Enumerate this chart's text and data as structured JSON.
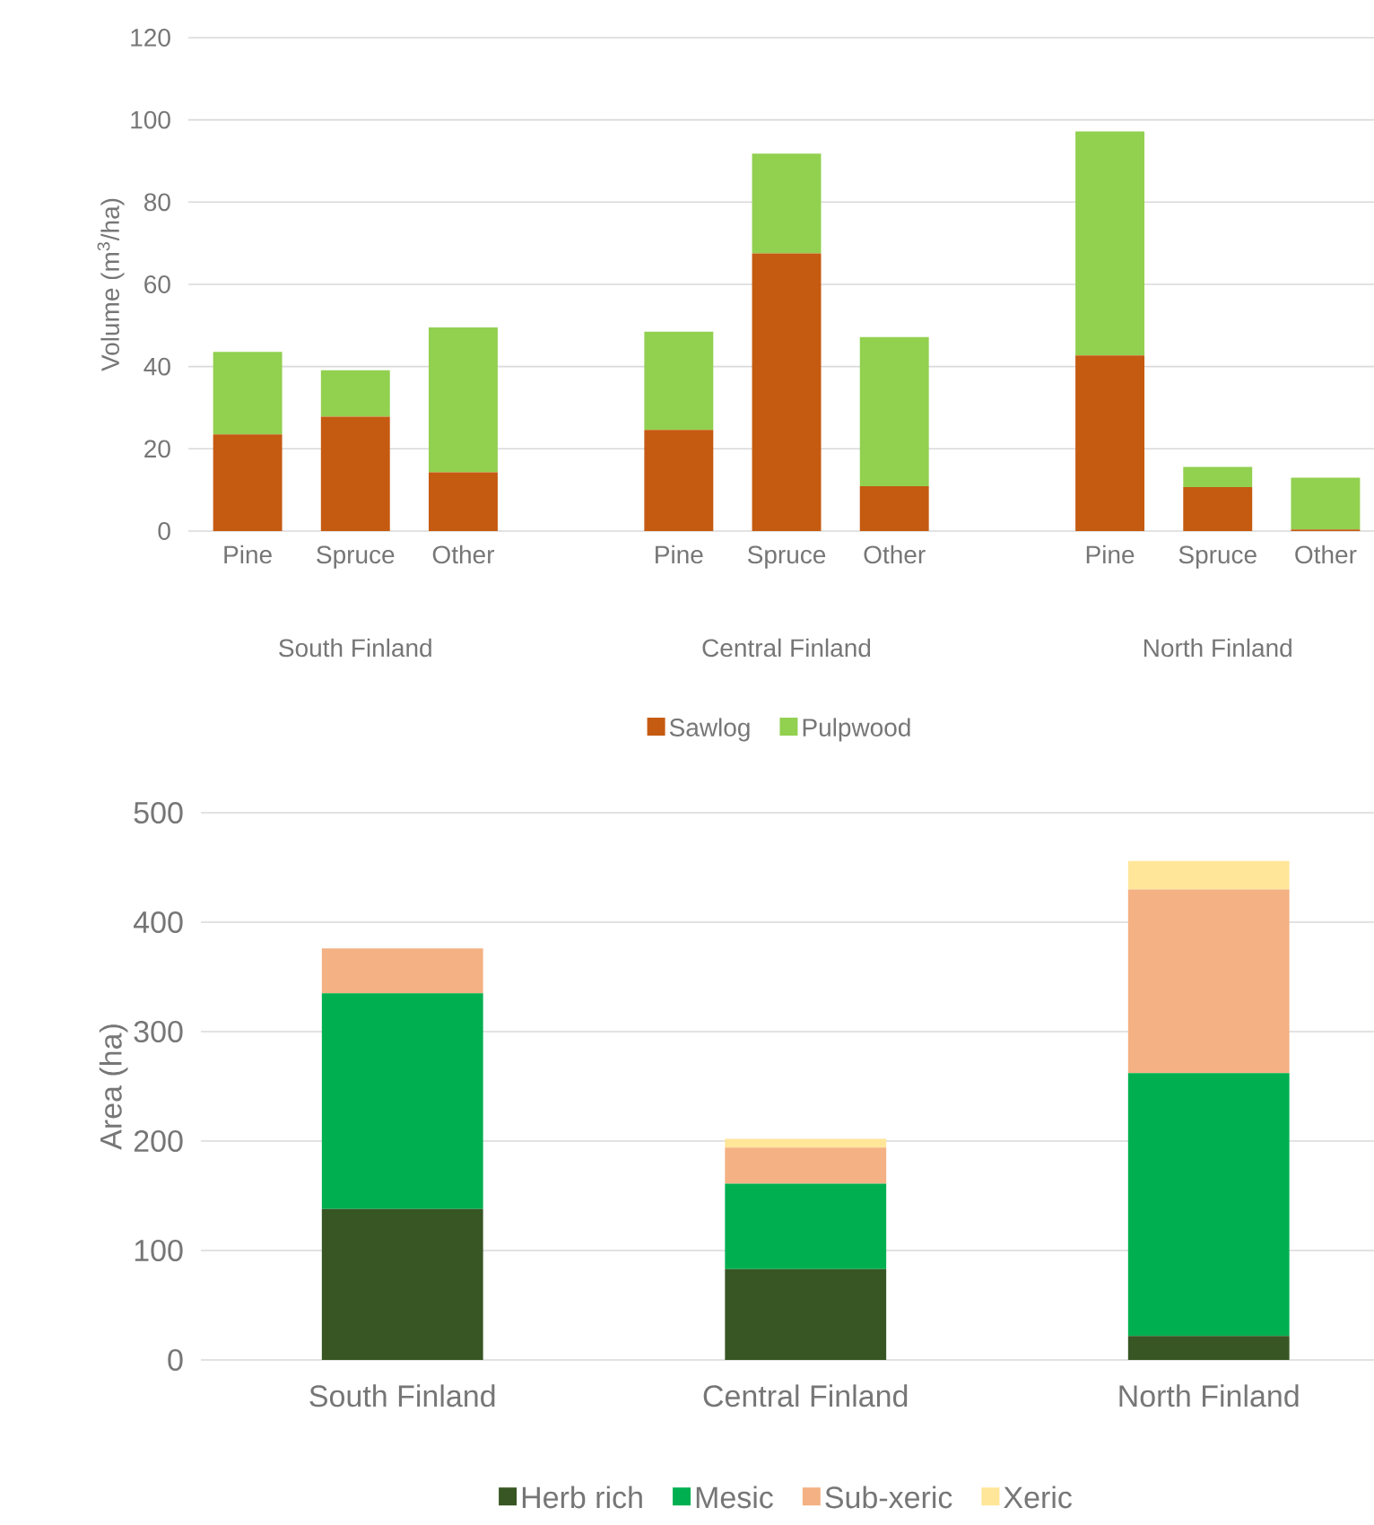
{
  "chart_data": [
    {
      "type": "bar",
      "stacked": true,
      "ylabel": "Volume (m$^{3}$/ha)",
      "categories": [
        "Pine",
        "Spruce",
        "Other",
        null,
        "Pine",
        "Spruce",
        "Other",
        null,
        "Pine",
        "Spruce",
        "Other"
      ],
      "series": [
        {
          "name": "Sawlog",
          "color": "#c55a11",
          "values": [
            23.5,
            27.8,
            14.3,
            null,
            24.6,
            67.5,
            10.9,
            null,
            42.7,
            10.7,
            0.4
          ]
        },
        {
          "name": "Pulpwood",
          "color": "#92d050",
          "values": [
            20.1,
            11.3,
            35.2,
            null,
            23.9,
            24.3,
            36.3,
            null,
            54.5,
            4.9,
            12.6
          ]
        }
      ],
      "ylim": [
        0,
        120
      ],
      "yticks": [
        0,
        20,
        40,
        60,
        80,
        100,
        120
      ],
      "grid": "y",
      "legend": "bottom",
      "annotations": [
        "South Finland",
        "Central Finland",
        "North Finland"
      ]
    },
    {
      "type": "bar",
      "stacked": true,
      "ylabel": "Area (ha)",
      "categories": [
        "South Finland",
        "Central Finland",
        "North Finland"
      ],
      "series": [
        {
          "name": "Herb rich",
          "color": "#375623",
          "values": [
            138,
            83,
            22
          ]
        },
        {
          "name": "Mesic",
          "color": "#00b050",
          "values": [
            197,
            78,
            240
          ]
        },
        {
          "name": "Sub-xeric",
          "color": "#f4b183",
          "values": [
            41,
            33,
            168
          ]
        },
        {
          "name": "Xeric",
          "color": "#ffe699",
          "values": [
            0,
            8,
            26
          ]
        }
      ],
      "ylim": [
        0,
        500
      ],
      "yticks": [
        0,
        100,
        200,
        300,
        400,
        500
      ],
      "grid": "y",
      "legend": "bottom"
    }
  ]
}
